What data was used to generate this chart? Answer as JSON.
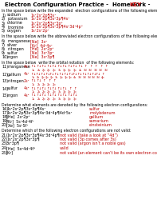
{
  "bg_color": "#ffffff",
  "text_color": "#000000",
  "red_color": "#bb0000",
  "title_black": "Electron Configuration Practice -  Homework - ",
  "title_red": "KEY",
  "s1_header": "In the space below write the expanded  electron configurations of the following elements:",
  "s1_items": [
    [
      "1)",
      "sodium",
      "1s²2s²2p¶3s¹"
    ],
    [
      "2)",
      "potassium",
      "1s²2s²2p¶3s²3p¶4s¹"
    ],
    [
      "3)",
      "chlorine",
      "1s²2s²2p¶3s²3p⁵"
    ],
    [
      "4)",
      "bromine",
      "1s²2s²2p¶3s²3p¶4s²3d¹4p⁵"
    ],
    [
      "5)",
      "oxygen",
      "1s²2s²2p⁴"
    ]
  ],
  "s2_header": "In the space below write the abbreviated electron configurations of the following elements:",
  "s2_items": [
    [
      "6)",
      "manganese",
      "[Ne]  3s²"
    ],
    [
      "7)",
      "silver",
      "[Kr]  4d¹4s¹"
    ],
    [
      "8)",
      "nitrogen",
      "[He]  2s²2p³"
    ],
    [
      "9)",
      "sulfur",
      "[Ne]  3s²3p⁴"
    ],
    [
      "10)",
      "argon",
      "[Ne]  3s²3p¶"
    ]
  ],
  "s3_header": "In the space below  write the orbital notation  of the following elements:",
  "s3_items": [
    [
      "11)",
      "manganese",
      "4s²",
      [
        "↑3s",
        "↑3s",
        "2p",
        "2p",
        "2p",
        "3s",
        "3p",
        "3p",
        "3p",
        "4s",
        "3d"
      ],
      [
        "↑↓",
        "1s",
        "↑↓",
        "2s",
        "↑↓",
        "2p",
        "↑↓",
        "2p",
        "↑↓",
        "2p",
        "↑↓",
        "3s",
        "↑↓",
        "3p",
        "↑↓",
        "3p",
        "↑↓",
        "3p",
        "↑↓",
        "4s",
        "↑",
        "3d"
      ]
    ],
    [
      "12)",
      "gallium",
      "4s¹",
      [],
      []
    ],
    [
      "13)",
      "nitrogen",
      "2s¹",
      [],
      []
    ],
    [
      "14)",
      "sulfur",
      "4s²",
      [],
      []
    ],
    [
      "15)",
      "argon",
      "4s²",
      [],
      []
    ]
  ],
  "s4_header": "Determine what elements are denoted by the following electron configurations:",
  "s4_items": [
    [
      "16)",
      "1s²2s²2p¶3s²3p¶4s¹",
      "sulfur"
    ],
    [
      "17)",
      "1s²2s²2p¶3s²3p¶4s²3d¹4p¶4d¹5s¹",
      "molybdenum"
    ],
    [
      "18)",
      "[He]  2s²2p³",
      "gallium"
    ],
    [
      "19)",
      "[Kr]  5s²4d¹4f¹",
      "samarium"
    ],
    [
      "20)",
      "[Xe]  5s²5f¹",
      "einsteinium"
    ]
  ],
  "s5_header": "Determine which of the following electron configurations are not valid:",
  "s5_items": [
    [
      "21)",
      "1s²2s²2p¶3s²3p¶4s²3d¹4p¶",
      "not valid (take a look at “4d”)"
    ],
    [
      "22)",
      "1s²2s²2p¶3s²3p¶",
      "not valid (3p comes after 3s)"
    ],
    [
      "23)",
      "3s²3p¶",
      "not valid (argon isn’t a noble gas)"
    ],
    [
      "24)",
      "[He]  5s²4d¹4f⁵",
      "valid"
    ],
    [
      "25)",
      "[Kr]",
      "not valid (an element can’t be its own electron configuration)"
    ]
  ]
}
